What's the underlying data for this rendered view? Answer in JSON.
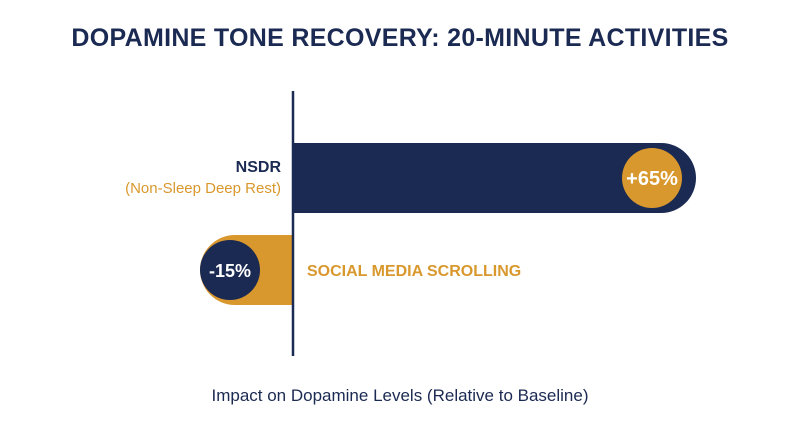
{
  "chart_data": {
    "type": "bar",
    "title": "DOPAMINE TONE RECOVERY: 20-MINUTE ACTIVITIES",
    "xlabel": "Impact on Dopamine Levels (Relative to Baseline)",
    "ylabel": "",
    "categories": [
      {
        "name": "NSDR",
        "sublabel": "(Non-Sleep Deep Rest)"
      },
      {
        "name": "SOCIAL MEDIA SCROLLING",
        "sublabel": ""
      }
    ],
    "values": [
      65,
      -15
    ],
    "value_labels": [
      "+65%",
      "-15%"
    ],
    "unit": "%",
    "xlim": [
      -15,
      65
    ],
    "grid": false,
    "legend": "none",
    "colors": {
      "title": "#1b2a52",
      "positive_bar": "#1b2a52",
      "negative_bar": "#d9982d",
      "axis": "#1b2a52",
      "category_primary": "#1b2a52",
      "category_secondary": "#d9982d"
    }
  }
}
